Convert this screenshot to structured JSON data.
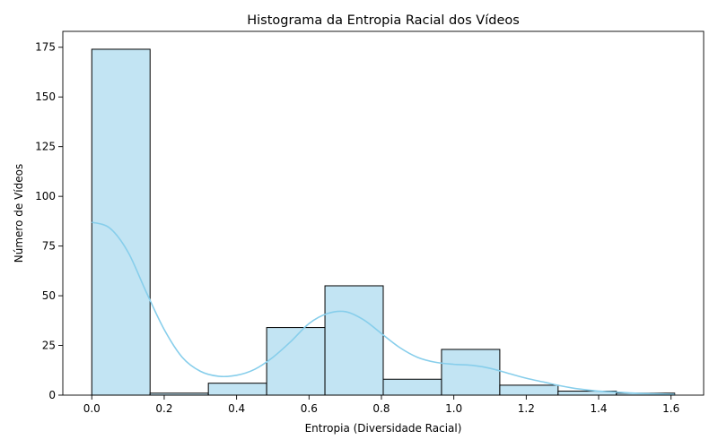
{
  "chart_data": {
    "type": "bar",
    "title": "Histograma da Entropia Racial dos Vídeos",
    "xlabel": "Entropia (Diversidade Racial)",
    "ylabel": "Número de Vídeos",
    "xlim": [
      -0.08,
      1.69
    ],
    "ylim": [
      0,
      183
    ],
    "xticks": [
      0.0,
      0.2,
      0.4,
      0.6,
      0.8,
      1.0,
      1.2,
      1.4,
      1.6
    ],
    "xtick_labels": [
      "0.0",
      "0.2",
      "0.4",
      "0.6",
      "0.8",
      "1.0",
      "1.2",
      "1.4",
      "1.6"
    ],
    "yticks": [
      0,
      25,
      50,
      75,
      100,
      125,
      150,
      175
    ],
    "ytick_labels": [
      "0",
      "25",
      "50",
      "75",
      "100",
      "125",
      "150",
      "175"
    ],
    "bins": [
      {
        "x0": 0.0,
        "x1": 0.161,
        "count": 174
      },
      {
        "x0": 0.161,
        "x1": 0.322,
        "count": 1
      },
      {
        "x0": 0.322,
        "x1": 0.483,
        "count": 6
      },
      {
        "x0": 0.483,
        "x1": 0.644,
        "count": 34
      },
      {
        "x0": 0.644,
        "x1": 0.805,
        "count": 55
      },
      {
        "x0": 0.805,
        "x1": 0.966,
        "count": 8
      },
      {
        "x0": 0.966,
        "x1": 1.127,
        "count": 23
      },
      {
        "x0": 1.127,
        "x1": 1.288,
        "count": 5
      },
      {
        "x0": 1.288,
        "x1": 1.449,
        "count": 2
      },
      {
        "x0": 1.449,
        "x1": 1.61,
        "count": 1
      }
    ],
    "kde": {
      "x": [
        0.0,
        0.05,
        0.1,
        0.15,
        0.2,
        0.25,
        0.3,
        0.35,
        0.4,
        0.45,
        0.5,
        0.55,
        0.6,
        0.65,
        0.7,
        0.75,
        0.8,
        0.85,
        0.9,
        0.95,
        1.0,
        1.05,
        1.1,
        1.15,
        1.2,
        1.25,
        1.3,
        1.35,
        1.4,
        1.45,
        1.5,
        1.55,
        1.61
      ],
      "y": [
        87,
        84,
        72,
        52,
        33,
        19,
        12,
        9.5,
        10,
        13,
        19,
        27,
        36,
        41,
        42,
        38,
        31,
        24,
        19,
        16.5,
        15.5,
        15,
        13.5,
        11,
        8.5,
        6.5,
        4.5,
        3,
        2,
        1.5,
        1,
        0.7,
        0.4
      ]
    },
    "grid": false,
    "colors": {
      "bar_fill": "#c2e4f3",
      "bar_edge": "#000000",
      "kde_line": "#87ceeb"
    }
  }
}
